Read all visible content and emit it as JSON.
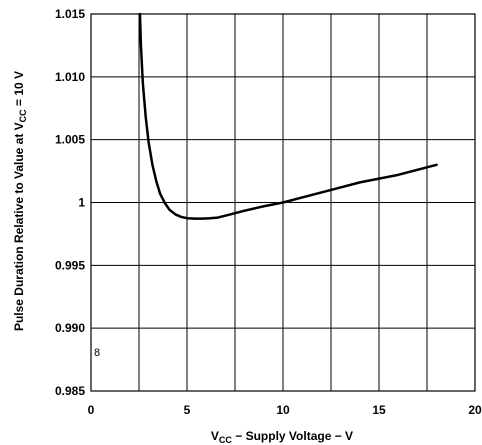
{
  "chart_data": {
    "type": "line",
    "xlabel": {
      "pre": "V",
      "sub": "CC",
      "post": " − Supply Voltage − V"
    },
    "ylabel": {
      "pre": "Pulse Duration Relative to Value at V",
      "sub": "CC",
      "post": " = 10 V"
    },
    "xlim": [
      0,
      20
    ],
    "ylim": [
      0.985,
      1.015
    ],
    "x_ticks": [
      {
        "value": 0,
        "label": "0"
      },
      {
        "value": 5,
        "label": "5"
      },
      {
        "value": 10,
        "label": "10"
      },
      {
        "value": 15,
        "label": "15"
      },
      {
        "value": 20,
        "label": "20"
      }
    ],
    "y_ticks": [
      {
        "value": 0.985,
        "label": "0.985"
      },
      {
        "value": 0.99,
        "label": "0.990"
      },
      {
        "value": 0.995,
        "label": "0.995"
      },
      {
        "value": 1.0,
        "label": "1"
      },
      {
        "value": 1.005,
        "label": "1.005"
      },
      {
        "value": 1.01,
        "label": "1.010"
      },
      {
        "value": 1.015,
        "label": "1.015"
      }
    ],
    "grid": true,
    "x_gridlines": [
      0,
      2.5,
      5,
      7.5,
      10,
      12.5,
      15,
      17.5,
      20
    ],
    "y_gridlines": [
      0.985,
      0.99,
      0.995,
      1.0,
      1.005,
      1.01,
      1.015
    ],
    "series": [
      {
        "x": [
          2.55,
          2.6,
          2.7,
          2.85,
          3.0,
          3.2,
          3.4,
          3.6,
          3.85,
          4.1,
          4.4,
          4.7,
          5.0,
          5.4,
          5.8,
          6.2,
          6.6,
          7.0,
          8.0,
          9.0,
          10.0,
          11.0,
          12.0,
          13.0,
          14.0,
          15.0,
          16.0,
          17.0,
          18.0
        ],
        "y": [
          1.015,
          1.0125,
          1.0095,
          1.0068,
          1.0048,
          1.003,
          1.0017,
          1.0007,
          0.99995,
          0.9994,
          0.99905,
          0.99885,
          0.99875,
          0.99872,
          0.99872,
          0.99875,
          0.9988,
          0.99895,
          0.99935,
          0.9997,
          1.0,
          1.0004,
          1.0008,
          1.0012,
          1.0016,
          1.0019,
          1.0022,
          1.0026,
          1.003
        ]
      }
    ],
    "annotation": "8"
  }
}
